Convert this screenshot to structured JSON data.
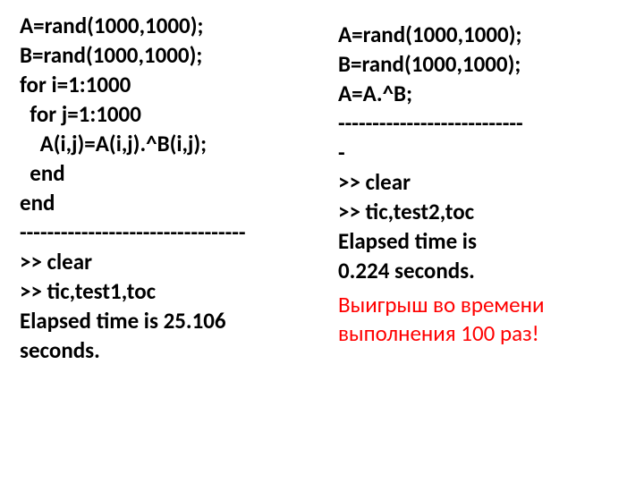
{
  "left": {
    "code": "A=rand(1000,1000);\nB=rand(1000,1000);\nfor i=1:1000\n  for j=1:1000\n    A(i,j)=A(i,j).^B(i,j);\n  end\nend\n---------------------------------\n>> clear\n>> tic,test1,toc\nElapsed time is 25.106\nseconds."
  },
  "right": {
    "code": "A=rand(1000,1000);\nB=rand(1000,1000);\nA=A.^B;\n---------------------------\n-\n>> clear\n>> tic,test2,toc\nElapsed time is\n0.224 seconds.",
    "highlight": "Выигрыш во\nвремени\nвыполнения 100\nраз!"
  },
  "colors": {
    "text": "#000000",
    "highlight": "#ff0000",
    "background": "#ffffff"
  },
  "typography": {
    "code_fontsize": 25,
    "code_fontweight": "bold",
    "highlight_fontsize": 25,
    "highlight_fontweight": "normal",
    "font_family": "Calibri, Arial, sans-serif"
  }
}
